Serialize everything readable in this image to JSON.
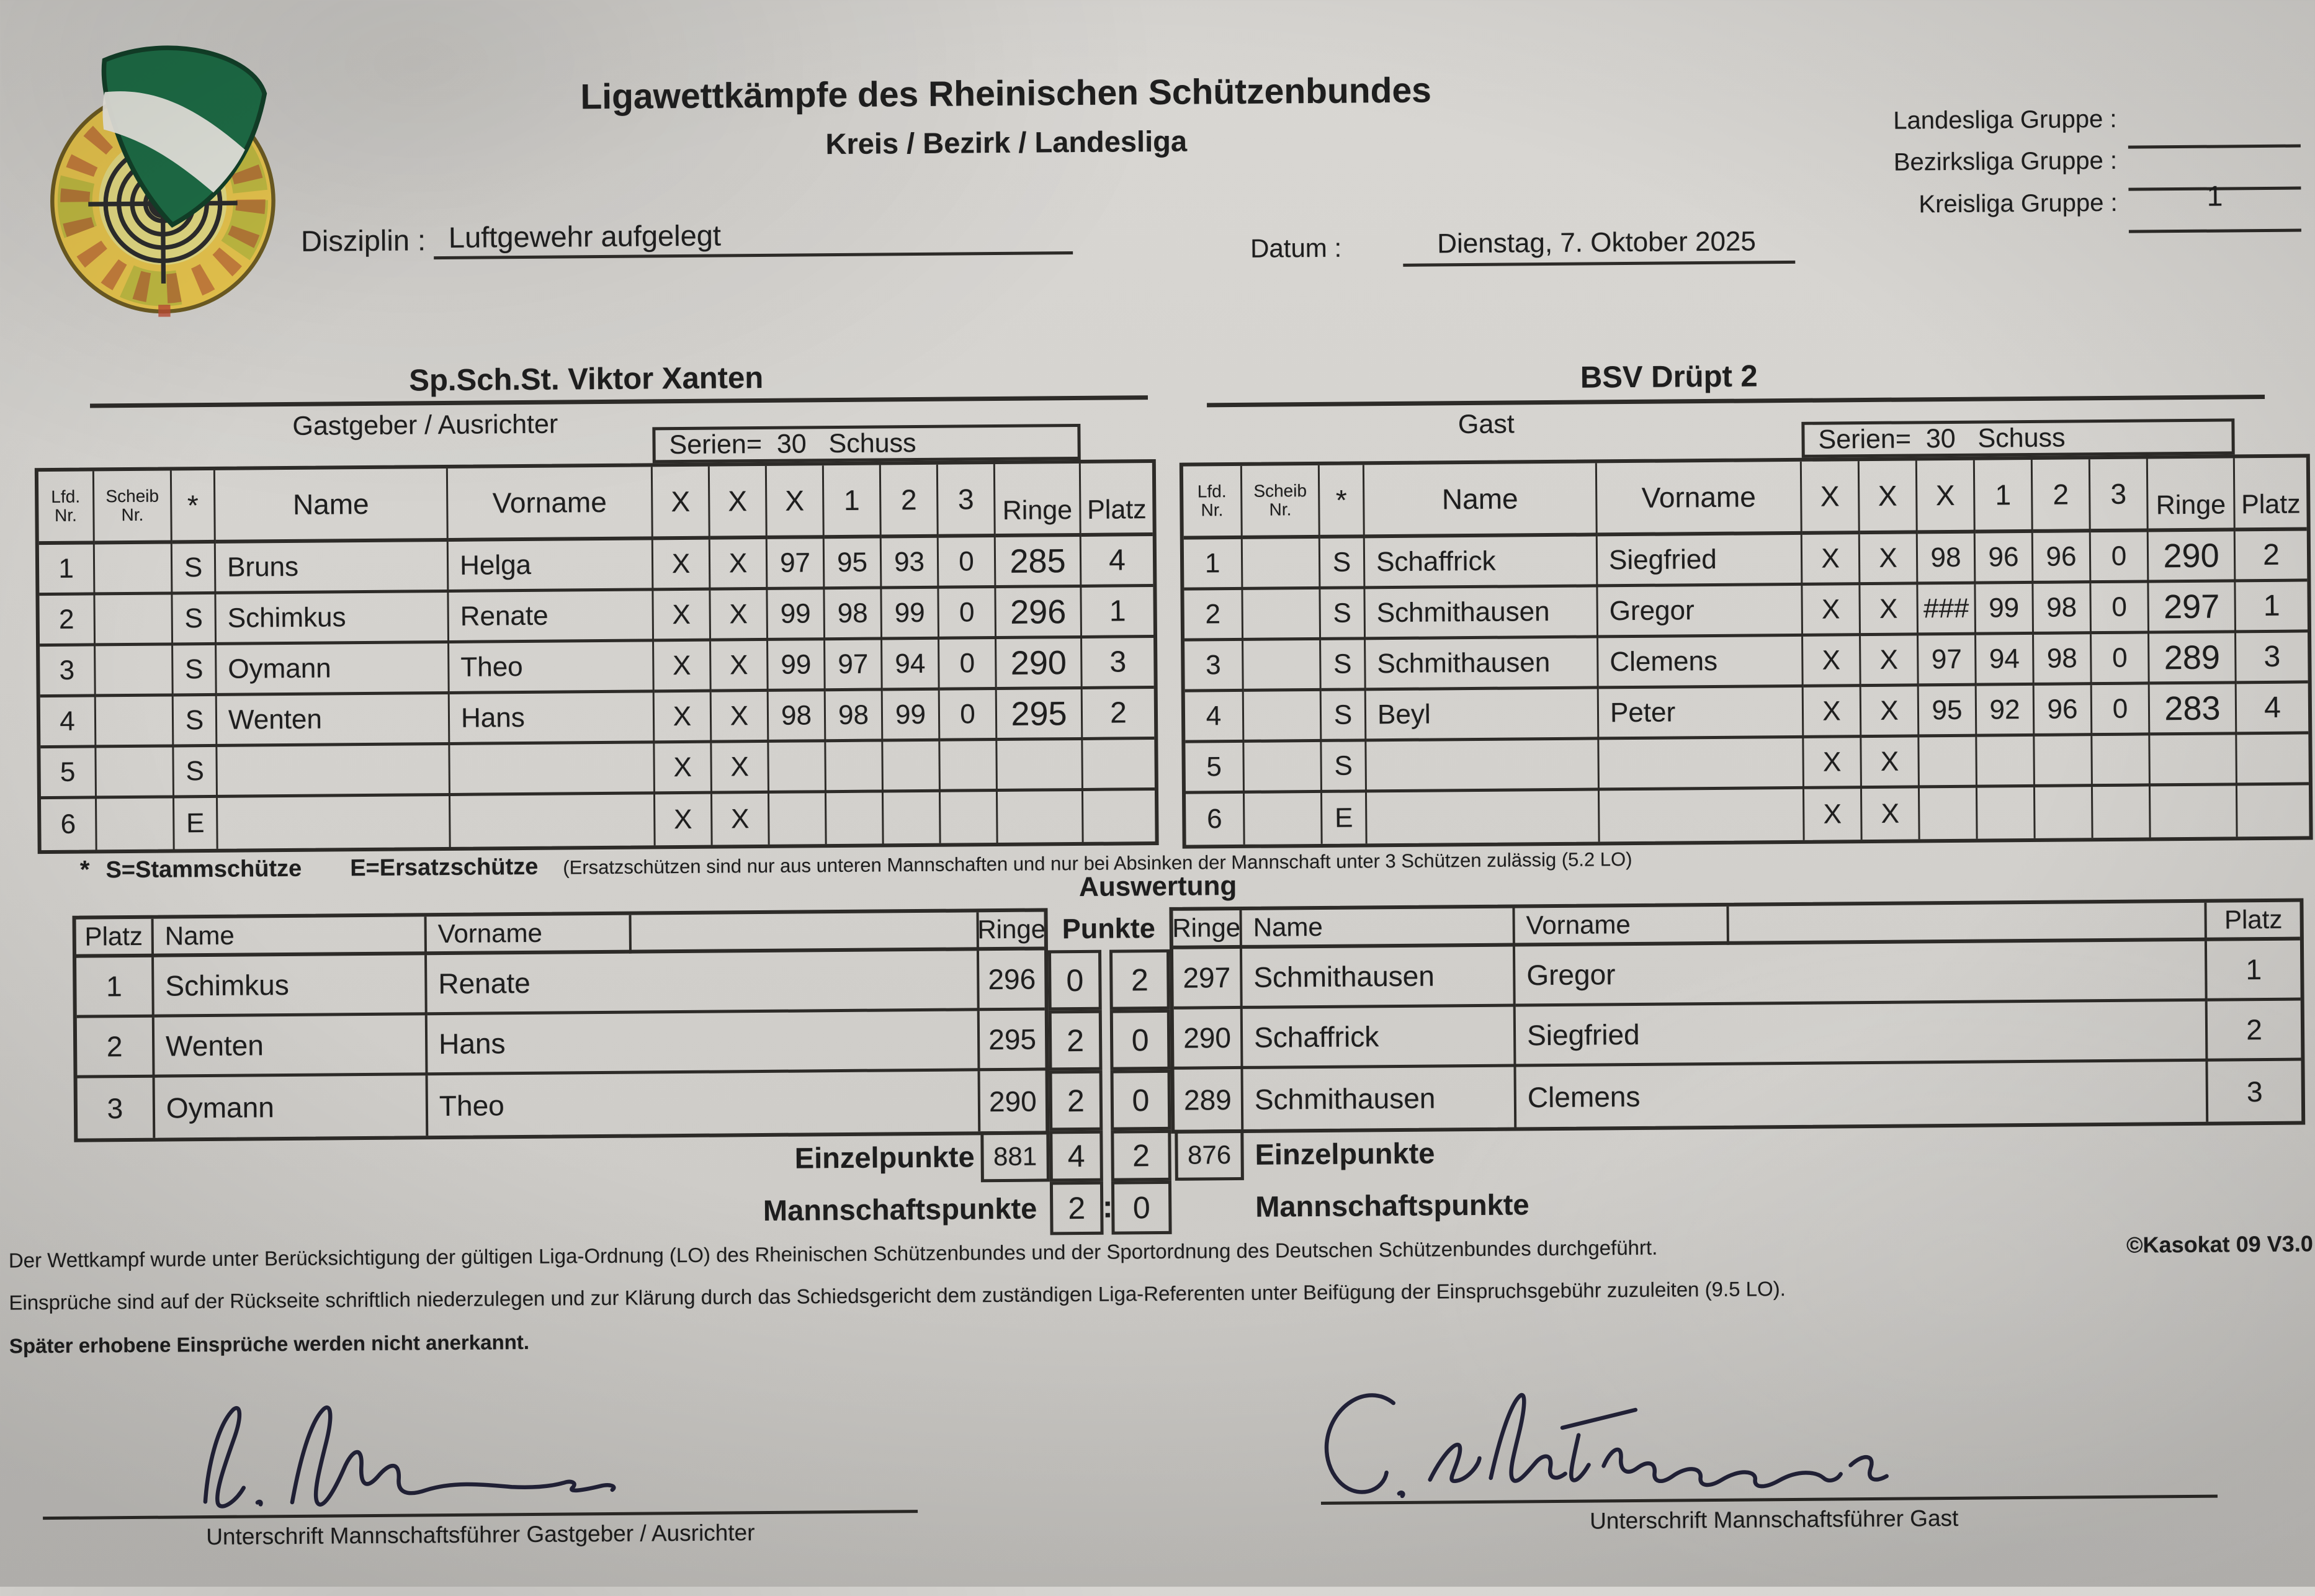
{
  "header": {
    "title": "Ligawettkämpfe des Rheinischen Schützenbundes",
    "subtitle": "Kreis / Bezirk / Landesliga",
    "discipline_label": "Disziplin :",
    "discipline_value": "Luftgewehr aufgelegt",
    "date_label": "Datum :",
    "date_value": "Dienstag, 7. Oktober 2025",
    "league_fields": [
      {
        "label": "Landesliga Gruppe :",
        "value": ""
      },
      {
        "label": "Bezirksliga Gruppe :",
        "value": ""
      },
      {
        "label": "Kreisliga Gruppe :",
        "value": "1"
      }
    ],
    "logo_name": "rheinischer-schuetzenbund-badge"
  },
  "teams": {
    "home": {
      "name": "Sp.Sch.St. Viktor Xanten",
      "role": "Gastgeber / Ausrichter"
    },
    "guest": {
      "name": "BSV Drüpt 2",
      "role": "Gast"
    }
  },
  "score_table": {
    "series_header": "Serien=  30   Schuss",
    "columns": {
      "lfd1": "Lfd.",
      "lfd2": "Nr.",
      "scheib1": "Scheib",
      "scheib2": "Nr.",
      "star": "*",
      "name": "Name",
      "vorname": "Vorname",
      "shots": [
        "X",
        "X",
        "X",
        "1",
        "2",
        "3"
      ],
      "ringe": "Ringe",
      "platz": "Platz"
    },
    "home_rows": [
      {
        "nr": "1",
        "scheib": "",
        "star": "S",
        "name": "Bruns",
        "vorname": "Helga",
        "shots": [
          "X",
          "X",
          "97",
          "95",
          "93",
          "0"
        ],
        "ringe": "285",
        "platz": "4"
      },
      {
        "nr": "2",
        "scheib": "",
        "star": "S",
        "name": "Schimkus",
        "vorname": "Renate",
        "shots": [
          "X",
          "X",
          "99",
          "98",
          "99",
          "0"
        ],
        "ringe": "296",
        "platz": "1"
      },
      {
        "nr": "3",
        "scheib": "",
        "star": "S",
        "name": "Oymann",
        "vorname": "Theo",
        "shots": [
          "X",
          "X",
          "99",
          "97",
          "94",
          "0"
        ],
        "ringe": "290",
        "platz": "3"
      },
      {
        "nr": "4",
        "scheib": "",
        "star": "S",
        "name": "Wenten",
        "vorname": "Hans",
        "shots": [
          "X",
          "X",
          "98",
          "98",
          "99",
          "0"
        ],
        "ringe": "295",
        "platz": "2"
      },
      {
        "nr": "5",
        "scheib": "",
        "star": "S",
        "name": "",
        "vorname": "",
        "shots": [
          "X",
          "X",
          "",
          "",
          "",
          ""
        ],
        "ringe": "",
        "platz": ""
      },
      {
        "nr": "6",
        "scheib": "",
        "star": "E",
        "name": "",
        "vorname": "",
        "shots": [
          "X",
          "X",
          "",
          "",
          "",
          ""
        ],
        "ringe": "",
        "platz": ""
      }
    ],
    "guest_rows": [
      {
        "nr": "1",
        "scheib": "",
        "star": "S",
        "name": "Schaffrick",
        "vorname": "Siegfried",
        "shots": [
          "X",
          "X",
          "98",
          "96",
          "96",
          "0"
        ],
        "ringe": "290",
        "platz": "2"
      },
      {
        "nr": "2",
        "scheib": "",
        "star": "S",
        "name": "Schmithausen",
        "vorname": "Gregor",
        "shots": [
          "X",
          "X",
          "###",
          "99",
          "98",
          "0"
        ],
        "ringe": "297",
        "platz": "1"
      },
      {
        "nr": "3",
        "scheib": "",
        "star": "S",
        "name": "Schmithausen",
        "vorname": "Clemens",
        "shots": [
          "X",
          "X",
          "97",
          "94",
          "98",
          "0"
        ],
        "ringe": "289",
        "platz": "3"
      },
      {
        "nr": "4",
        "scheib": "",
        "star": "S",
        "name": "Beyl",
        "vorname": "Peter",
        "shots": [
          "X",
          "X",
          "95",
          "92",
          "96",
          "0"
        ],
        "ringe": "283",
        "platz": "4"
      },
      {
        "nr": "5",
        "scheib": "",
        "star": "S",
        "name": "",
        "vorname": "",
        "shots": [
          "X",
          "X",
          "",
          "",
          "",
          ""
        ],
        "ringe": "",
        "platz": ""
      },
      {
        "nr": "6",
        "scheib": "",
        "star": "E",
        "name": "",
        "vorname": "",
        "shots": [
          "X",
          "X",
          "",
          "",
          "",
          ""
        ],
        "ringe": "",
        "platz": ""
      }
    ]
  },
  "footnote": {
    "star": "*",
    "s_def": "S=Stammschütze",
    "e_def": "E=Ersatzschütze",
    "note": "(Ersatzschützen sind nur aus unteren Mannschaften und nur bei Absinken der Mannschaft unter 3 Schützen zulässig (5.2 LO)"
  },
  "auswertung": {
    "title": "Auswertung",
    "punkte_header": "Punkte",
    "colon": ":",
    "left": {
      "columns": {
        "platz": "Platz",
        "name": "Name",
        "vorname": "Vorname",
        "ringe": "Ringe"
      },
      "rows": [
        {
          "platz": "1",
          "name": "Schimkus",
          "vorname": "Renate",
          "ringe": "296",
          "punkte": "0"
        },
        {
          "platz": "2",
          "name": "Wenten",
          "vorname": "Hans",
          "ringe": "295",
          "punkte": "2"
        },
        {
          "platz": "3",
          "name": "Oymann",
          "vorname": "Theo",
          "ringe": "290",
          "punkte": "2"
        }
      ],
      "einzel_label": "Einzelpunkte",
      "einzel_ringe": "881",
      "einzel_punkte": "4",
      "mannschaft_label": "Mannschaftspunkte",
      "mannschaft_punkte": "2"
    },
    "right": {
      "columns": {
        "ringe": "Ringe",
        "name": "Name",
        "vorname": "Vorname",
        "platz": "Platz"
      },
      "rows": [
        {
          "punkte": "2",
          "ringe": "297",
          "name": "Schmithausen",
          "vorname": "Gregor",
          "platz": "1"
        },
        {
          "punkte": "0",
          "ringe": "290",
          "name": "Schaffrick",
          "vorname": "Siegfried",
          "platz": "2"
        },
        {
          "punkte": "0",
          "ringe": "289",
          "name": "Schmithausen",
          "vorname": "Clemens",
          "platz": "3"
        }
      ],
      "einzel_punkte": "2",
      "einzel_ringe": "876",
      "einzel_label": "Einzelpunkte",
      "mannschaft_punkte": "0",
      "mannschaft_label": "Mannschaftspunkte"
    }
  },
  "legal": {
    "line1": "Der Wettkampf wurde unter Berücksichtigung der gültigen Liga-Ordnung (LO) des Rheinischen Schützenbundes und der Sportordnung des Deutschen Schützenbundes durchgeführt.",
    "copyright": "©Kasokat 09 V3.0",
    "line2": "Einsprüche sind auf der Rückseite schriftlich niederzulegen und zur Klärung durch das Schiedsgericht dem zuständigen Liga-Referenten unter Beifügung der Einspruchsgebühr zuzuleiten (9.5 LO).",
    "line3": "Später erhobene Einsprüche werden nicht anerkannt."
  },
  "signatures": {
    "home_label": "Unterschrift Mannschaftsführer Gastgeber / Ausrichter",
    "guest_label": "Unterschrift Mannschaftsführer Gast"
  }
}
